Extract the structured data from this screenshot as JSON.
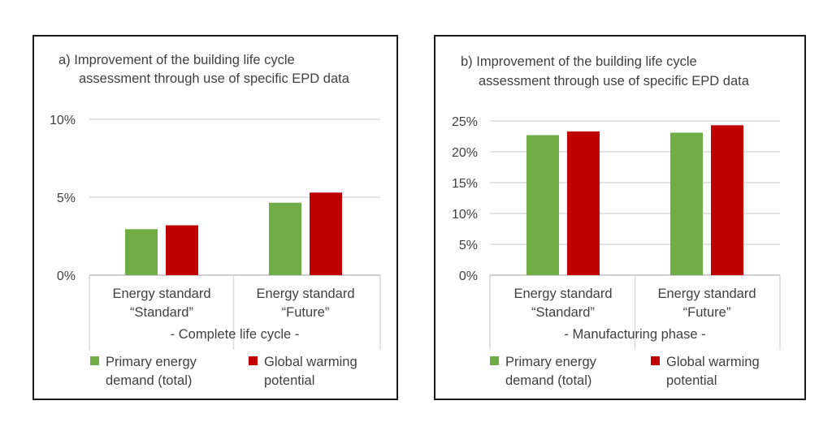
{
  "chart_data": [
    {
      "type": "bar",
      "title_line1": "a) Improvement of the building life cycle",
      "title_line2": "assessment through use of specific EPD data",
      "categories_line1": [
        "Energy standard",
        "Energy standard"
      ],
      "categories_line2": [
        "“Standard”",
        "“Future”"
      ],
      "xlabel": "- Complete life cycle -",
      "ylim": [
        0,
        10
      ],
      "yticks": [
        0,
        5,
        10
      ],
      "ytick_labels": [
        "0%",
        "5%",
        "10%"
      ],
      "grid": true,
      "series": [
        {
          "name_line1": "Primary energy",
          "name_line2": "demand (total)",
          "color": "#70ad47",
          "values": [
            2.95,
            4.65
          ]
        },
        {
          "name_line1": "Global warming",
          "name_line2": "potential",
          "color": "#c00000",
          "values": [
            3.2,
            5.3
          ]
        }
      ],
      "legend_position": "bottom"
    },
    {
      "type": "bar",
      "title_line1": "b) Improvement of the building life cycle",
      "title_line2": "assessment through use of specific EPD data",
      "categories_line1": [
        "Energy standard",
        "Energy standard"
      ],
      "categories_line2": [
        "“Standard”",
        "“Future”"
      ],
      "xlabel": "- Manufacturing phase -",
      "ylim": [
        0,
        25
      ],
      "yticks": [
        0,
        5,
        10,
        15,
        20,
        25
      ],
      "ytick_labels": [
        "0%",
        "5%",
        "10%",
        "15%",
        "20%",
        "25%"
      ],
      "grid": true,
      "series": [
        {
          "name_line1": "Primary energy",
          "name_line2": "demand (total)",
          "color": "#70ad47",
          "values": [
            22.7,
            23.1
          ]
        },
        {
          "name_line1": "Global warming",
          "name_line2": "potential",
          "color": "#c00000",
          "values": [
            23.3,
            24.3
          ]
        }
      ],
      "legend_position": "bottom"
    }
  ]
}
